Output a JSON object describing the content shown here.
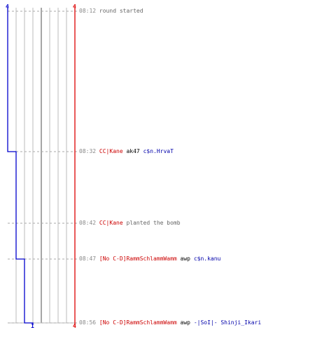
{
  "scale": {
    "left_top": "4",
    "right_top": "4",
    "right_bottom": "4",
    "blue_bottom": "1"
  },
  "players": {
    "blue_alive_steps": [
      4,
      3,
      2,
      1
    ],
    "red_alive": 4
  },
  "colors": {
    "blue": "#0000cc",
    "red": "#dd0000",
    "grid": "#bbbbbb",
    "center": "#888888",
    "red_team_text": "#cc0000",
    "blue_team_text": "#0000aa"
  },
  "events": [
    {
      "time": "08:12",
      "text": "round started"
    },
    {
      "time": "08:32",
      "killer": "CC|Kane",
      "weapon": "ak47",
      "victim": "c$n.HrvaT"
    },
    {
      "time": "08:42",
      "actor": "CC|Kane",
      "text": "planted the bomb"
    },
    {
      "time": "08:47",
      "killer": "[No C-D]RammSchlammWamm",
      "weapon": "awp",
      "victim": "c$n.kanu"
    },
    {
      "time": "08:56",
      "killer": "[No C-D]RammSchlammWamm",
      "weapon": "awp",
      "victim": "-|SoI|- Shinji_Ikari"
    }
  ]
}
